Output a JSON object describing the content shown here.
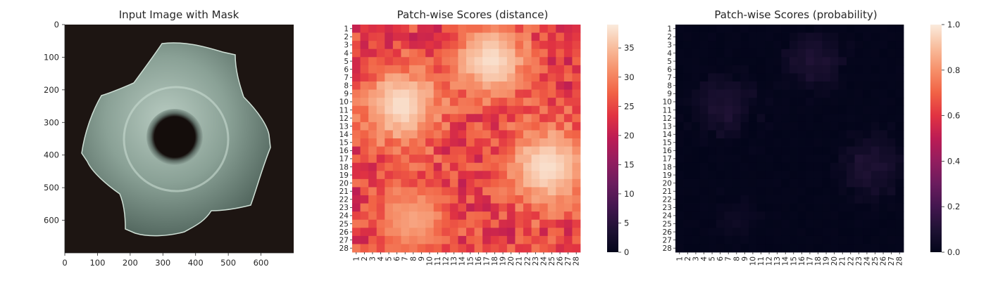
{
  "chart_data": [
    {
      "type": "image",
      "title": "Input Image with Mask",
      "x_ticks": [
        "0",
        "100",
        "200",
        "300",
        "400",
        "500",
        "600"
      ],
      "y_ticks": [
        "0",
        "100",
        "200",
        "300",
        "400",
        "500",
        "600"
      ],
      "xlim": [
        0,
        700
      ],
      "ylim": [
        700,
        0
      ],
      "background_color": "#1d1512",
      "object_color": "#8fa89c"
    },
    {
      "type": "heatmap",
      "title": "Patch-wise Scores (distance)",
      "rows": 28,
      "cols": 28,
      "row_labels": [
        "1",
        "2",
        "3",
        "4",
        "5",
        "6",
        "7",
        "8",
        "9",
        "10",
        "11",
        "12",
        "13",
        "14",
        "15",
        "16",
        "17",
        "18",
        "19",
        "20",
        "21",
        "22",
        "23",
        "24",
        "25",
        "26",
        "27",
        "28"
      ],
      "col_labels": [
        "1",
        "2",
        "3",
        "4",
        "5",
        "6",
        "7",
        "8",
        "9",
        "10",
        "11",
        "12",
        "13",
        "14",
        "15",
        "16",
        "17",
        "18",
        "19",
        "20",
        "21",
        "22",
        "23",
        "24",
        "25",
        "26",
        "27",
        "28"
      ],
      "colorbar_ticks": [
        "0",
        "5",
        "10",
        "15",
        "20",
        "25",
        "30",
        "35"
      ],
      "vmin": 0,
      "vmax": 39,
      "colormap": "rocket",
      "hot_regions": [
        {
          "center": [
            17.5,
            5.0
          ],
          "peak": 38,
          "spread": 3.2
        },
        {
          "center": [
            6.5,
            10.5
          ],
          "peak": 38,
          "spread": 3.4
        },
        {
          "center": [
            24.5,
            18.0
          ],
          "peak": 38,
          "spread": 3.6
        },
        {
          "center": [
            8.0,
            24.5
          ],
          "peak": 33,
          "spread": 3.0
        }
      ],
      "base_value": 24
    },
    {
      "type": "heatmap",
      "title": "Patch-wise Scores (probability)",
      "rows": 28,
      "cols": 28,
      "row_labels": [
        "1",
        "2",
        "3",
        "4",
        "5",
        "6",
        "7",
        "8",
        "9",
        "10",
        "11",
        "12",
        "13",
        "14",
        "15",
        "16",
        "17",
        "18",
        "19",
        "20",
        "21",
        "22",
        "23",
        "24",
        "25",
        "26",
        "27",
        "28"
      ],
      "col_labels": [
        "1",
        "2",
        "3",
        "4",
        "5",
        "6",
        "7",
        "8",
        "9",
        "10",
        "11",
        "12",
        "13",
        "14",
        "15",
        "16",
        "17",
        "18",
        "19",
        "20",
        "21",
        "22",
        "23",
        "24",
        "25",
        "26",
        "27",
        "28"
      ],
      "colorbar_ticks": [
        "0.0",
        "0.2",
        "0.4",
        "0.6",
        "0.8",
        "1.0"
      ],
      "vmin": 0,
      "vmax": 1,
      "colormap": "rocket",
      "max_cell_value": 0.12
    }
  ]
}
